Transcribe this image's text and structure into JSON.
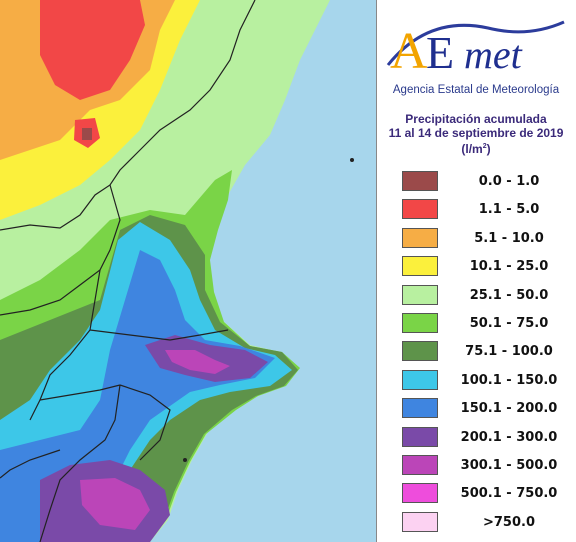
{
  "logo": {
    "text": "AEmet",
    "colors": {
      "a": "#f2a400",
      "e": "#1f2f8f",
      "met": "#1f2f8f",
      "swoosh": "#2c3c9c"
    }
  },
  "agency_name": "Agencia Estatal de Meteorología",
  "title": {
    "line1": "Precipitación acumulada",
    "line2": "11 al 14 de septiembre de 2019",
    "unit_prefix": "(l/m",
    "unit_exp": "2",
    "unit_suffix": ")"
  },
  "legend": [
    {
      "label": "0.0 - 1.0",
      "color": "#9b4a4a"
    },
    {
      "label": "1.1 - 5.0",
      "color": "#f24747"
    },
    {
      "label": "5.1 - 10.0",
      "color": "#f6ad45"
    },
    {
      "label": "10.1 - 25.0",
      "color": "#fbf03c"
    },
    {
      "label": "25.1 - 50.0",
      "color": "#b8f0a0"
    },
    {
      "label": "50.1 - 75.0",
      "color": "#7ad447"
    },
    {
      "label": "75.1 - 100.0",
      "color": "#5e934a"
    },
    {
      "label": "100.1 - 150.0",
      "color": "#3dc7e8"
    },
    {
      "label": "150.1 - 200.0",
      "color": "#3f85e0"
    },
    {
      "label": "200.1 - 300.0",
      "color": "#7a4aa8"
    },
    {
      "label": "300.1 - 500.0",
      "color": "#bb45b8"
    },
    {
      "label": "500.1 - 750.0",
      "color": "#ee4ddc"
    },
    {
      "label": ">750.0",
      "color": "#fcd2f2"
    }
  ],
  "map": {
    "sea_color": "#a7d6ec",
    "border_color": "#222222"
  }
}
